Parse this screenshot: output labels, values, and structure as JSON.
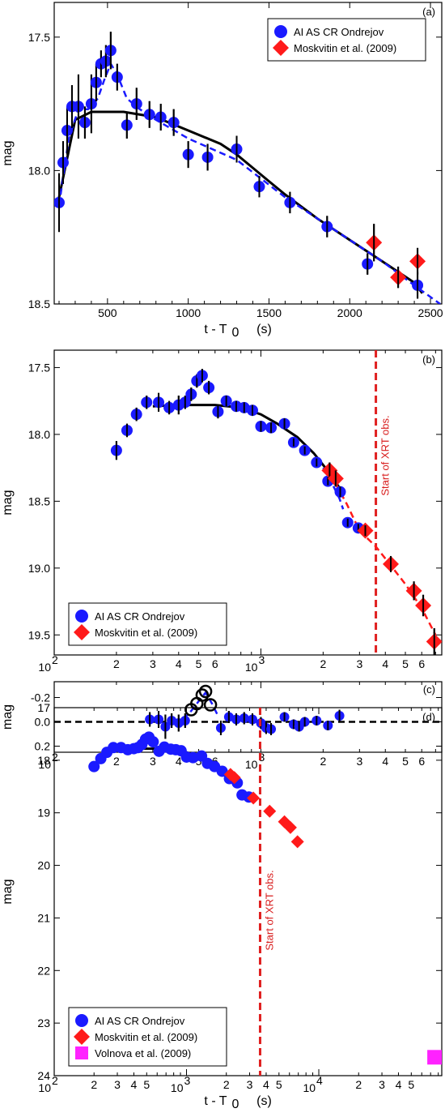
{
  "chart_data": [
    {
      "panel": "(a)",
      "type": "scatter",
      "xlabel_main": "t - T",
      "xlabel_sub": "0",
      "xlabel_unit": "(s)",
      "ylabel": "mag",
      "xscale": "linear",
      "xlim": [
        170,
        2570
      ],
      "ylim": [
        18.5,
        17.37
      ],
      "y_inverted": true,
      "xticks": [
        500,
        1000,
        1500,
        2000,
        2500
      ],
      "yticks": [
        17.5,
        18.0,
        18.5
      ],
      "ytick_labels": [
        "17.5",
        "18.0",
        "18.5"
      ],
      "legend_position": "top-right",
      "series": [
        {
          "name": "AI AS CR Ondrejov",
          "marker": "circle",
          "color": "#1a1aff",
          "x": [
            200,
            225,
            250,
            280,
            320,
            360,
            400,
            430,
            460,
            490,
            520,
            560,
            620,
            680,
            760,
            830,
            910,
            1000,
            1120,
            1300,
            1440,
            1630,
            1860,
            2110,
            2420
          ],
          "y": [
            18.12,
            17.97,
            17.85,
            17.76,
            17.76,
            17.82,
            17.75,
            17.67,
            17.6,
            17.59,
            17.55,
            17.65,
            17.83,
            17.75,
            17.79,
            17.8,
            17.82,
            17.94,
            17.95,
            17.92,
            18.06,
            18.12,
            18.21,
            18.35,
            18.43
          ],
          "yerr": [
            0.11,
            0.08,
            0.09,
            0.08,
            0.12,
            0.06,
            0.11,
            0.07,
            0.05,
            0.06,
            0.07,
            0.05,
            0.05,
            0.06,
            0.05,
            0.05,
            0.05,
            0.05,
            0.05,
            0.05,
            0.04,
            0.04,
            0.04,
            0.04,
            0.05
          ]
        },
        {
          "name": "Moskvitin et al. (2009)",
          "marker": "diamond",
          "color": "#ff1a1a",
          "x": [
            2150,
            2300,
            2420
          ],
          "y": [
            18.27,
            18.4,
            18.34
          ],
          "yerr": [
            0.07,
            0.04,
            0.05
          ]
        }
      ],
      "fits": [
        {
          "style": "solid",
          "color": "#000000",
          "x": [
            200,
            300,
            400,
            500,
            600,
            800,
            1000,
            1200,
            1300,
            1400,
            1500,
            1600,
            1800,
            2000,
            2200,
            2400,
            2450
          ],
          "y": [
            18.1,
            17.81,
            17.78,
            17.78,
            17.78,
            17.8,
            17.85,
            17.9,
            17.94,
            17.99,
            18.04,
            18.09,
            18.18,
            18.26,
            18.34,
            18.42,
            18.46
          ]
        },
        {
          "style": "dashed",
          "color": "#1a1aff",
          "x": [
            200,
            260,
            320,
            380,
            440,
            480,
            520,
            560,
            620,
            700,
            800,
            1000,
            1300,
            1600,
            1900,
            2200,
            2400,
            2560
          ],
          "y": [
            18.13,
            17.88,
            17.77,
            17.77,
            17.73,
            17.66,
            17.6,
            17.64,
            17.73,
            17.77,
            17.81,
            17.88,
            17.96,
            18.1,
            18.22,
            18.34,
            18.43,
            18.5
          ]
        }
      ],
      "legend": [
        "AI AS CR Ondrejov",
        "Moskvitin et al. (2009)"
      ]
    },
    {
      "panel": "(b)",
      "type": "scatter",
      "ylabel": "mag",
      "xscale": "log",
      "xlim": [
        100,
        7500
      ],
      "ylim": [
        19.65,
        17.37
      ],
      "y_inverted": true,
      "ytick_labels": [
        "17.5",
        "18.0",
        "18.5",
        "19.0",
        "19.5"
      ],
      "yticks": [
        17.5,
        18.0,
        18.5,
        19.0,
        19.5
      ],
      "xtick_major_base": "10",
      "xtick_major_exps": [
        "2",
        "3"
      ],
      "xtick_minor_labels": [
        "2",
        "3",
        "4",
        "5",
        "6",
        "2",
        "3",
        "4",
        "5",
        "6"
      ],
      "xrt_start": 3600,
      "xrt_label": "Start of XRT obs.",
      "legend_position": "bottom-left",
      "legend": [
        "AI AS CR Ondrejov",
        "Moskvitin et al. (2009)"
      ],
      "series": [
        {
          "name": "AI AS CR Ondrejov",
          "marker": "circle",
          "color": "#1a1aff",
          "x": [
            200,
            225,
            250,
            280,
            320,
            360,
            400,
            430,
            460,
            490,
            520,
            560,
            620,
            680,
            760,
            830,
            910,
            1000,
            1120,
            1300,
            1440,
            1630,
            1860,
            2110,
            2420,
            2630,
            2960
          ],
          "y": [
            18.12,
            17.97,
            17.85,
            17.76,
            17.76,
            17.8,
            17.78,
            17.76,
            17.7,
            17.6,
            17.56,
            17.65,
            17.83,
            17.75,
            17.79,
            17.8,
            17.82,
            17.94,
            17.95,
            17.92,
            18.06,
            18.12,
            18.21,
            18.35,
            18.43,
            18.66,
            18.7
          ],
          "yerr": [
            0.07,
            0.05,
            0.05,
            0.05,
            0.07,
            0.05,
            0.07,
            0.05,
            0.05,
            0.05,
            0.05,
            0.05,
            0.05,
            0.04,
            0.04,
            0.04,
            0.04,
            0.04,
            0.04,
            0.04,
            0.03,
            0.03,
            0.03,
            0.03,
            0.04,
            0.03,
            0.03
          ]
        },
        {
          "name": "Moskvitin et al. (2009)",
          "marker": "diamond",
          "color": "#ff1a1a",
          "x": [
            2150,
            2300,
            3200,
            4250,
            5500,
            6100,
            6900
          ],
          "y": [
            18.27,
            18.33,
            18.72,
            18.97,
            19.17,
            19.28,
            19.55
          ],
          "yerr": [
            0.06,
            0.06,
            0.04,
            0.06,
            0.07,
            0.08,
            0.1
          ]
        }
      ],
      "fits": [
        {
          "style": "solid",
          "color": "#000000",
          "x": [
            300,
            400,
            500,
            600,
            800,
            1000,
            1200,
            1500,
            1800,
            2100,
            2400
          ],
          "y": [
            17.79,
            17.78,
            17.78,
            17.78,
            17.8,
            17.85,
            17.92,
            18.02,
            18.14,
            18.27,
            18.4
          ]
        },
        {
          "style": "dashed",
          "color": "#1a1aff",
          "x": [
            2000,
            2200,
            2400,
            2500
          ],
          "y": [
            18.25,
            18.36,
            18.48,
            18.56
          ]
        },
        {
          "style": "dashed",
          "color": "#ff1a1a",
          "x": [
            2300,
            2600,
            3000,
            3600,
            4200,
            5000,
            6000,
            7000
          ],
          "y": [
            18.37,
            18.52,
            18.72,
            18.84,
            18.97,
            19.12,
            19.3,
            19.5
          ]
        }
      ]
    },
    {
      "panel": "(c)",
      "type": "scatter",
      "ylabel": "mag",
      "xscale": "log",
      "xlim": [
        100,
        7500
      ],
      "ylim": [
        0.25,
        -0.33
      ],
      "y_inverted": true,
      "yticks": [
        -0.2,
        0.0,
        0.2
      ],
      "ytick_labels": [
        "-0.2",
        "0.0",
        "0.2"
      ],
      "xtick_major_base": "10",
      "xtick_major_exps": [
        "2",
        "3"
      ],
      "xtick_minor_labels": [
        "2",
        "3",
        "4",
        "5",
        "6",
        "2",
        "3",
        "4",
        "5",
        "6"
      ],
      "series": [
        {
          "name": "residuals",
          "marker": "circle",
          "color": "#1a1aff",
          "x": [
            290,
            320,
            345,
            370,
            400,
            430,
            640,
            700,
            760,
            830,
            910,
            1000,
            1060,
            1120,
            1300,
            1440,
            1530,
            1630,
            1860,
            2110,
            2400
          ],
          "y": [
            -0.02,
            -0.02,
            0.04,
            -0.01,
            0.01,
            -0.01,
            0.05,
            -0.04,
            -0.02,
            -0.03,
            -0.02,
            0.01,
            0.05,
            0.06,
            -0.04,
            0.02,
            0.04,
            0.0,
            -0.01,
            0.03,
            -0.05
          ],
          "yerr": [
            0.06,
            0.07,
            0.1,
            0.06,
            0.07,
            0.06,
            0.06,
            0.05,
            0.05,
            0.05,
            0.05,
            0.05,
            0.05,
            0.05,
            0.04,
            0.04,
            0.04,
            0.04,
            0.04,
            0.04,
            0.05
          ]
        },
        {
          "name": "flare",
          "marker": "open-circle",
          "color": "#000000",
          "x": [
            460,
            490,
            520,
            540,
            570
          ],
          "y": [
            -0.1,
            -0.15,
            -0.22,
            -0.25,
            -0.14
          ]
        }
      ],
      "fits": [
        {
          "style": "dashed",
          "color": "#000000",
          "x": [
            100,
            7500
          ],
          "y": [
            0.0,
            0.0
          ]
        },
        {
          "style": "dashed",
          "color": "#1a1aff",
          "x": [
            420,
            460,
            500,
            540,
            580,
            620
          ],
          "y": [
            -0.02,
            -0.09,
            -0.17,
            -0.24,
            -0.15,
            -0.05
          ]
        }
      ]
    },
    {
      "panel": "(d)",
      "type": "scatter",
      "xlabel_main": "t - T",
      "xlabel_sub": "0",
      "xlabel_unit": "(s)",
      "ylabel": "mag",
      "xscale": "log",
      "xlim": [
        100,
        85000
      ],
      "ylim": [
        24.0,
        17.0
      ],
      "y_inverted": true,
      "yticks": [
        17,
        18,
        19,
        20,
        21,
        22,
        23,
        24
      ],
      "ytick_labels": [
        "17",
        "18",
        "19",
        "20",
        "21",
        "22",
        "23",
        "24"
      ],
      "xtick_major_base": "10",
      "xtick_major_exps": [
        "2",
        "3",
        "4"
      ],
      "xtick_minor_labels": [
        "2",
        "3",
        "4",
        "5",
        "2",
        "3",
        "4",
        "5",
        "2",
        "3",
        "4",
        "5"
      ],
      "xrt_start": 3600,
      "xrt_label": "Start of XRT obs.",
      "legend_position": "bottom-left",
      "legend": [
        "AI AS CR Ondrejov",
        "Moskvitin et al. (2009)",
        "Volnova et al. (2009)"
      ],
      "series": [
        {
          "name": "AI AS CR Ondrejov",
          "marker": "circle",
          "color": "#1a1aff",
          "x": [
            200,
            225,
            250,
            280,
            320,
            360,
            400,
            430,
            460,
            490,
            520,
            560,
            620,
            680,
            760,
            830,
            910,
            1000,
            1120,
            1300,
            1440,
            1630,
            1860,
            2110,
            2420,
            2630,
            2960
          ],
          "y": [
            18.12,
            17.97,
            17.85,
            17.76,
            17.76,
            17.8,
            17.78,
            17.76,
            17.7,
            17.6,
            17.56,
            17.65,
            17.83,
            17.75,
            17.79,
            17.8,
            17.82,
            17.94,
            17.95,
            17.92,
            18.06,
            18.12,
            18.21,
            18.35,
            18.43,
            18.66,
            18.7
          ]
        },
        {
          "name": "Moskvitin et al. (2009)",
          "marker": "diamond",
          "color": "#ff1a1a",
          "x": [
            2150,
            2300,
            3200,
            4250,
            5500,
            6100,
            6900
          ],
          "y": [
            18.27,
            18.33,
            18.72,
            18.97,
            19.17,
            19.28,
            19.55
          ]
        },
        {
          "name": "Volnova et al. (2009)",
          "marker": "square",
          "color": "#ff22ff",
          "x": [
            75000
          ],
          "y": [
            23.65
          ]
        }
      ],
      "fits": [
        {
          "style": "solid",
          "color": "#000000",
          "x": [
            300,
            400,
            500,
            600,
            800,
            1000,
            1200,
            1500,
            1800,
            2100,
            2400
          ],
          "y": [
            17.79,
            17.78,
            17.78,
            17.78,
            17.8,
            17.85,
            17.92,
            18.02,
            18.14,
            18.27,
            18.4
          ]
        },
        {
          "style": "dashed",
          "color": "#1a1aff",
          "x": [
            2000,
            2300,
            2500
          ],
          "y": [
            18.25,
            18.42,
            18.56
          ]
        }
      ]
    }
  ]
}
